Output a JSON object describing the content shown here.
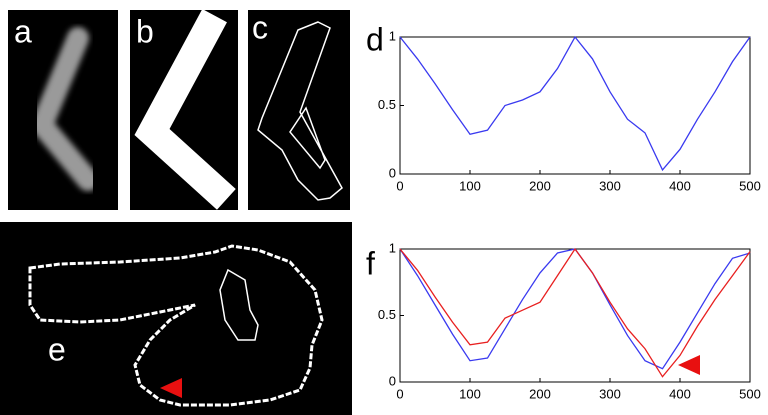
{
  "panels": [
    {
      "label": "a"
    },
    {
      "label": "b"
    },
    {
      "label": "c"
    },
    {
      "label": "d"
    },
    {
      "label": "e"
    },
    {
      "label": "f"
    }
  ],
  "chart_data": [
    {
      "type": "line",
      "x": [
        0,
        25,
        50,
        75,
        100,
        125,
        150,
        175,
        200,
        225,
        250,
        275,
        300,
        325,
        350,
        375,
        400,
        425,
        450,
        475,
        500
      ],
      "series": [
        {
          "color": "#3a3af0",
          "values": [
            1,
            0.84,
            0.66,
            0.47,
            0.29,
            0.32,
            0.5,
            0.54,
            0.6,
            0.77,
            1,
            0.84,
            0.6,
            0.4,
            0.3,
            0.03,
            0.18,
            0.4,
            0.6,
            0.82,
            1
          ]
        }
      ],
      "xlim": [
        0,
        500
      ],
      "ylim": [
        0,
        1
      ],
      "xticks": [
        0,
        100,
        200,
        300,
        400,
        500
      ],
      "yticks": [
        0,
        0.5,
        1
      ]
    },
    {
      "type": "line",
      "x": [
        0,
        25,
        50,
        75,
        100,
        125,
        150,
        175,
        200,
        225,
        250,
        275,
        300,
        325,
        350,
        375,
        400,
        425,
        450,
        475,
        500
      ],
      "series": [
        {
          "color": "#3a3af0",
          "values": [
            1,
            0.8,
            0.58,
            0.36,
            0.16,
            0.18,
            0.4,
            0.62,
            0.82,
            0.97,
            1,
            0.82,
            0.58,
            0.35,
            0.16,
            0.1,
            0.3,
            0.52,
            0.74,
            0.93,
            0.97
          ]
        },
        {
          "color": "#e82020",
          "values": [
            1,
            0.84,
            0.64,
            0.45,
            0.28,
            0.3,
            0.48,
            0.54,
            0.6,
            0.8,
            1,
            0.82,
            0.6,
            0.4,
            0.25,
            0.04,
            0.2,
            0.42,
            0.62,
            0.8,
            0.98
          ]
        }
      ],
      "xlim": [
        0,
        500
      ],
      "ylim": [
        0,
        1
      ],
      "xticks": [
        0,
        100,
        200,
        300,
        400,
        500
      ],
      "yticks": [
        0,
        0.5,
        1
      ]
    }
  ]
}
